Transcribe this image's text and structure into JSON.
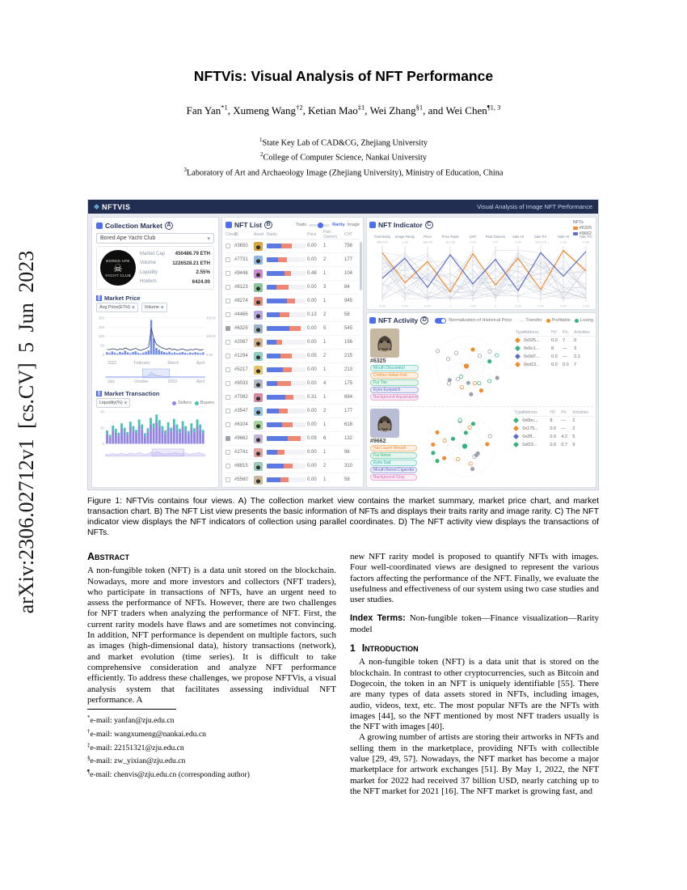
{
  "arxiv_banner": "arXiv:2306.02712v1  [cs.CV]  5 Jun 2023",
  "paper": {
    "title": "NFTVis: Visual Analysis of NFT Performance",
    "authors": [
      {
        "name": "Fan Yan",
        "sup": "*1",
        "sep": ", "
      },
      {
        "name": "Xumeng Wang",
        "sup": "†2",
        "sep": ", "
      },
      {
        "name": "Ketian Mao",
        "sup": "‡1",
        "sep": ", "
      },
      {
        "name": "Wei Zhang",
        "sup": "§1",
        "sep": ", and "
      },
      {
        "name": "Wei Chen",
        "sup": "¶1, 3",
        "sep": ""
      }
    ],
    "affiliations": [
      {
        "sup": "1",
        "text": "State Key Lab of CAD&CG, Zhejiang University"
      },
      {
        "sup": "2",
        "text": "College of Computer Science, Nankai University"
      },
      {
        "sup": "3",
        "text": "Laboratory of Art and Archaeology Image (Zhejiang University), Ministry of Education, China"
      }
    ]
  },
  "figure_caption": "Figure 1: NFTVis contains four views. A) The collection market view contains the market summary, market price chart, and market transaction chart. B) The NFT List view presents the basic information of NFTs and displays their traits rarity and image rarity. C) The NFT indicator view displays the NFT indicators of collection using parallel coordinates. D) The NFT activity view displays the transactions of NFTs.",
  "abstract": {
    "heading": "Abstract",
    "text": "A non-fungible token (NFT) is a data unit stored on the blockchain. Nowadays, more and more investors and collectors (NFT traders), who participate in transactions of NFTs, have an urgent need to assess the performance of NFTs. However, there are two challenges for NFT traders when analyzing the performance of NFT. First, the current rarity models have flaws and are sometimes not convincing. In addition, NFT performance is dependent on multiple factors, such as images (high-dimensional data), history transactions (network), and market evolution (time series). It is difficult to take comprehensive consideration and analyze NFT performance efficiently. To address these challenges, we propose NFTVis, a visual analysis system that facilitates assessing individual NFT performance. A"
  },
  "right_col": {
    "cont_text": "new NFT rarity model is proposed to quantify NFTs with images. Four well-coordinated views are designed to represent the various factors affecting the performance of the NFT. Finally, we evaluate the usefulness and effectiveness of our system using two case studies and user studies.",
    "index_terms_label": "Index Terms:",
    "index_terms": "Non-fungible token—Finance visualization—Rarity model",
    "section_no": "1",
    "section_title": "Introduction",
    "para1": "A non-fungible token (NFT) is a data unit that is stored on the blockchain. In contrast to other cryptocurrencies, such as Bitcoin and Dogecoin, the token in an NFT is uniquely identifiable [55]. There are many types of data assets stored in NFTs, including images, audio, videos, text, etc. The most popular NFTs are the NFTs with images [44], so the NFT mentioned by most NFT traders usually is the NFT with images [40].",
    "para2": "A growing number of artists are storing their artworks in NFTs and selling them in the marketplace, providing NFTs with collectible value [29, 49, 57]. Nowadays, the NFT market has become a major marketplace for artwork exchanges [51]. By May 1, 2022, the NFT market for 2022 had received 37 billion USD, nearly catching up to the NFT market for 2021 [16]. The NFT market is growing fast, and"
  },
  "footnotes": [
    {
      "sup": "*",
      "text": "e-mail: yanfan@zju.edu.cn"
    },
    {
      "sup": "†",
      "text": "e-mail: wangxumeng@nankai.edu.cn"
    },
    {
      "sup": "‡",
      "text": "e-mail: 22151321@zju.edu.cn"
    },
    {
      "sup": "§",
      "text": "e-mail: zw_yixian@zju.edu.cn"
    },
    {
      "sup": "¶",
      "text": "e-mail: chenvis@zju.edu.cn (corresponding author)"
    }
  ],
  "dashboard": {
    "header": {
      "logo": "NFTVIS",
      "subtitle": "Visual Analysis of Image NFT Performance"
    },
    "colors": {
      "navy": "#222d52",
      "accent": "#4e6ef2",
      "trait_bar": "#5b79e3",
      "image_bar": "#ef8672",
      "orange": "#ef8c2d",
      "green": "#35b37e",
      "purple": "#9383e2",
      "teal": "#46c3b2",
      "gray_node": "#9aa1ad"
    },
    "collection_market": {
      "title": "Collection Market",
      "badge": "A",
      "collection_select": "Bored Ape Yacht Club",
      "logo_top": "BORED APE",
      "logo_bottom": "YACHT CLUB",
      "stats": [
        {
          "label": "Market Cap",
          "value": "450486.79 ETH"
        },
        {
          "label": "Volume",
          "value": "1226528.21 ETH"
        },
        {
          "label": "Liquidity",
          "value": "2.55%"
        },
        {
          "label": "Holders",
          "value": "6424.00"
        }
      ],
      "price_section": {
        "title": "Market Price",
        "select1": "Avg Price(ETH)",
        "select2": "Volume",
        "y_left": [
          "200",
          "150",
          "100",
          "50",
          "0"
        ],
        "y_right": [
          "200.00",
          "100.00",
          "0.00"
        ],
        "bars": [
          14,
          9,
          18,
          12,
          7,
          16,
          11,
          22,
          13,
          8,
          15,
          19,
          10,
          6,
          12,
          17,
          24,
          198,
          92,
          38,
          28,
          20,
          15,
          11,
          17,
          9,
          13,
          8,
          11,
          15,
          10,
          7,
          12,
          9,
          14,
          11,
          8,
          13
        ],
        "line": [
          30,
          28,
          34,
          31,
          27,
          33,
          29,
          38,
          32,
          26,
          31,
          36,
          28,
          24,
          30,
          35,
          44,
          150,
          88,
          60,
          48,
          40,
          34,
          30,
          36,
          28,
          31,
          25,
          29,
          33,
          27,
          24,
          30,
          27,
          32,
          29,
          26,
          30
        ],
        "x_labels": [
          "2022",
          "February",
          "March",
          "April"
        ],
        "brush_labels": [
          "July",
          "October",
          "2023",
          "April"
        ]
      },
      "tx_section": {
        "title": "Market Transaction",
        "select1": "Liquidity(%)",
        "legend": [
          {
            "label": "Sellers",
            "color": "#9383e2"
          },
          {
            "label": "Buyers",
            "color": "#46c3b2"
          }
        ],
        "y_ticks": [
          "40",
          "20",
          "0"
        ],
        "bars_a": [
          18,
          12,
          25,
          20,
          15,
          28,
          22,
          16,
          30,
          24,
          19,
          33,
          26,
          14,
          21,
          35,
          28,
          40,
          32,
          24,
          18,
          29,
          22,
          34,
          26,
          20,
          31,
          24,
          17,
          28,
          21,
          33,
          26,
          19
        ],
        "bars_b": [
          6,
          4,
          8,
          7,
          5,
          9,
          7,
          5,
          10,
          8,
          6,
          11,
          9,
          5,
          7,
          12,
          9,
          13,
          11,
          8,
          6,
          10,
          7,
          11,
          9,
          7,
          10,
          8,
          6,
          9,
          7,
          11,
          9,
          6
        ]
      }
    },
    "nft_list": {
      "title": "NFT List",
      "badge": "B",
      "switch": {
        "options": [
          "Traits",
          "Rarity",
          "Image"
        ]
      },
      "columns": [
        "Check",
        "ID",
        "Asset",
        "Rarity",
        "Price",
        "Part Owners",
        "CHT"
      ],
      "rows": [
        {
          "id": "#3650",
          "avatar": "#d9a441",
          "trait": 38,
          "image": 26,
          "price": "0.00",
          "owners": "1",
          "cht": "756",
          "checked": false
        },
        {
          "id": "#7731",
          "avatar": "#8fb7e3",
          "trait": 30,
          "image": 22,
          "price": "0.00",
          "owners": "2",
          "cht": "177",
          "checked": false
        },
        {
          "id": "#9448",
          "avatar": "#c98ad1",
          "trait": 45,
          "image": 18,
          "price": "0.48",
          "owners": "1",
          "cht": "104",
          "checked": false
        },
        {
          "id": "#8123",
          "avatar": "#88c79a",
          "trait": 26,
          "image": 30,
          "price": "0.00",
          "owners": "3",
          "cht": "84",
          "checked": false
        },
        {
          "id": "#8274",
          "avatar": "#e08d7d",
          "trait": 52,
          "image": 20,
          "price": "0.00",
          "owners": "1",
          "cht": "945",
          "checked": false
        },
        {
          "id": "#4466",
          "avatar": "#b7a4e0",
          "trait": 33,
          "image": 25,
          "price": "0.13",
          "owners": "2",
          "cht": "58",
          "checked": false
        },
        {
          "id": "#6325",
          "avatar": "#9fb4c7",
          "trait": 58,
          "image": 30,
          "price": "0.00",
          "owners": "5",
          "cht": "545",
          "checked": true
        },
        {
          "id": "#2087",
          "avatar": "#d9b08c",
          "trait": 24,
          "image": 16,
          "price": "0.00",
          "owners": "1",
          "cht": "156",
          "checked": false
        },
        {
          "id": "#1294",
          "avatar": "#8ecfc4",
          "trait": 36,
          "image": 28,
          "price": "0.05",
          "owners": "2",
          "cht": "215",
          "checked": false
        },
        {
          "id": "#5217",
          "avatar": "#e3c567",
          "trait": 42,
          "image": 22,
          "price": "0.00",
          "owners": "1",
          "cht": "213",
          "checked": false
        },
        {
          "id": "#9033",
          "avatar": "#b3b9c6",
          "trait": 28,
          "image": 34,
          "price": "0.00",
          "owners": "4",
          "cht": "175",
          "checked": false
        },
        {
          "id": "#7082",
          "avatar": "#d489a6",
          "trait": 48,
          "image": 20,
          "price": "0.31",
          "owners": "1",
          "cht": "694",
          "checked": false
        },
        {
          "id": "#3547",
          "avatar": "#97c2e0",
          "trait": 31,
          "image": 24,
          "price": "0.00",
          "owners": "2",
          "cht": "177",
          "checked": false
        },
        {
          "id": "#6104",
          "avatar": "#a4d49b",
          "trait": 39,
          "image": 27,
          "price": "0.00",
          "owners": "1",
          "cht": "618",
          "checked": false
        },
        {
          "id": "#9662",
          "avatar": "#c2b5d9",
          "trait": 55,
          "image": 32,
          "price": "0.09",
          "owners": "6",
          "cht": "132",
          "checked": true
        },
        {
          "id": "#2741",
          "avatar": "#e0a2a2",
          "trait": 27,
          "image": 19,
          "price": "0.00",
          "owners": "1",
          "cht": "96",
          "checked": false
        },
        {
          "id": "#8815",
          "avatar": "#9ccab8",
          "trait": 44,
          "image": 23,
          "price": "0.00",
          "owners": "2",
          "cht": "310",
          "checked": false
        },
        {
          "id": "#5560",
          "avatar": "#cbb79a",
          "trait": 35,
          "image": 21,
          "price": "0.00",
          "owners": "1",
          "cht": "58",
          "checked": false
        }
      ]
    },
    "nft_indicator": {
      "title": "NFT Indicator",
      "badge": "C",
      "legend_title": "NFTs",
      "legend": [
        {
          "label": "#6325",
          "color": "#ef8c2d"
        },
        {
          "label": "#9662",
          "color": "#5f6cc9"
        }
      ],
      "axes": [
        "Trait Rarity",
        "Image Rarity",
        "Price",
        "Price Rank",
        "LMT",
        "Past Owners",
        "Sale HI",
        "Sale Pri.",
        "Hide HI",
        "Hide Pri."
      ],
      "axis_top": [
        "490,070",
        "1.00",
        "160.00",
        "10,155",
        "1.00",
        "177",
        "1.00",
        "205,175",
        "1.00",
        "0.95"
      ],
      "axis_bottom": [
        "0.00",
        "0.00",
        "0.00",
        "1",
        "0.00",
        "0",
        "0.00",
        "0.00",
        "0.00",
        "0.00"
      ],
      "series": [
        {
          "name": "#6325",
          "color": "#ef8c2d",
          "values": [
            0.88,
            0.34,
            0.72,
            0.18,
            0.86,
            0.3,
            0.78,
            0.22,
            0.92,
            0.55
          ]
        },
        {
          "name": "#9662",
          "color": "#5f6cc9",
          "values": [
            0.42,
            0.78,
            0.26,
            0.84,
            0.32,
            0.76,
            0.2,
            0.88,
            0.46,
            0.9
          ]
        }
      ]
    },
    "nft_activity": {
      "title": "NFT Activity",
      "badge": "D",
      "toggle_label": "Normalization of Historical Price",
      "legend": [
        {
          "label": "Transfer",
          "type": "arrow",
          "color": "#9aa1ad"
        },
        {
          "label": "Profitable",
          "type": "dot",
          "color": "#ef8c2d"
        },
        {
          "label": "Losing",
          "type": "dot",
          "color": "#35b37e"
        }
      ],
      "table_columns": [
        "Type",
        "Address",
        "HV",
        "Pri.",
        "Activities"
      ],
      "items": [
        {
          "id": "#6325",
          "avatar_bg": "#c7b9a1",
          "tags": [
            {
              "label": "Mouth Discomfort",
              "color": "#2ab5a5"
            },
            {
              "label": "Clothes Italian Knit",
              "color": "#ef8c2d"
            },
            {
              "label": "Fur Tan",
              "color": "#35b37e"
            },
            {
              "label": "Eyes Eyepatch",
              "color": "#5f6cc9"
            },
            {
              "label": "Background Aquamarine",
              "color": "#d36bb8"
            }
          ],
          "rows": [
            {
              "type_color": "#ef8c2d",
              "address": "0x025...",
              "hv": "0.0",
              "pri": "7",
              "act": "0"
            },
            {
              "type_color": "#35b37e",
              "address": "0x6c1...",
              "hv": "8",
              "pri": "—",
              "act": "3"
            },
            {
              "type_color": "#5f6cc9",
              "address": "0x0d7...",
              "hv": "0.0",
              "pri": "—",
              "act": "2.1"
            },
            {
              "type_color": "#ef8c2d",
              "address": "0xd13...",
              "hv": "0.0",
              "pri": "0.0",
              "act": "7"
            }
          ]
        },
        {
          "id": "#9662",
          "avatar_bg": "#b9bdd6",
          "tags": [
            {
              "label": "Hat Laurel Wreath",
              "color": "#ef8c2d"
            },
            {
              "label": "Fur Noise",
              "color": "#35b37e"
            },
            {
              "label": "Eyes Sad",
              "color": "#2ab5a5"
            },
            {
              "label": "Mouth Bored Cigarette",
              "color": "#5f6cc9"
            },
            {
              "label": "Background Gray",
              "color": "#d36bb8"
            }
          ],
          "rows": [
            {
              "type_color": "#35b37e",
              "address": "0x6bc...",
              "hv": "8",
              "pri": "—",
              "act": "2"
            },
            {
              "type_color": "#ef8c2d",
              "address": "0x175...",
              "hv": "0.0",
              "pri": "—",
              "act": "2"
            },
            {
              "type_color": "#5f6cc9",
              "address": "0x2ff...",
              "hv": "0.0",
              "pri": "4.2",
              "act": "5"
            },
            {
              "type_color": "#35b37e",
              "address": "0xf23...",
              "hv": "0.0",
              "pri": "0.7",
              "act": "9"
            }
          ]
        }
      ]
    }
  }
}
